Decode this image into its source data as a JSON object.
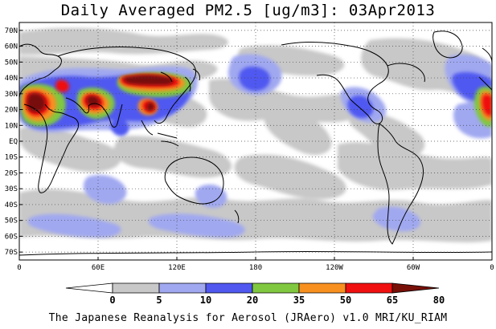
{
  "title": "Daily Averaged PM2.5 [ug/m3]: 03Apr2013",
  "credit": "The Japanese Reanalysis for Aerosol (JRAero) v1.0 MRI/KU_RIAM",
  "lat_ticks": [
    {
      "lat": 70,
      "label": "70N"
    },
    {
      "lat": 60,
      "label": "60N"
    },
    {
      "lat": 50,
      "label": "50N"
    },
    {
      "lat": 40,
      "label": "40N"
    },
    {
      "lat": 30,
      "label": "30N"
    },
    {
      "lat": 20,
      "label": "20N"
    },
    {
      "lat": 10,
      "label": "10N"
    },
    {
      "lat": 0,
      "label": "EQ"
    },
    {
      "lat": -10,
      "label": "10S"
    },
    {
      "lat": -20,
      "label": "20S"
    },
    {
      "lat": -30,
      "label": "30S"
    },
    {
      "lat": -40,
      "label": "40S"
    },
    {
      "lat": -50,
      "label": "50S"
    },
    {
      "lat": -60,
      "label": "60S"
    },
    {
      "lat": -70,
      "label": "70S"
    }
  ],
  "lon_ticks": [
    {
      "lon": 0,
      "label": "0"
    },
    {
      "lon": 60,
      "label": "60E"
    },
    {
      "lon": 120,
      "label": "120E"
    },
    {
      "lon": 180,
      "label": "180"
    },
    {
      "lon": 240,
      "label": "120W"
    },
    {
      "lon": 300,
      "label": "60W"
    },
    {
      "lon": 360,
      "label": "0"
    }
  ],
  "colorbar": {
    "colors": [
      "#ffffff",
      "#c8c8c8",
      "#a0a8f0",
      "#5058f0",
      "#80c840",
      "#f89020",
      "#f01010",
      "#781008"
    ],
    "labels": [
      "0",
      "5",
      "10",
      "20",
      "35",
      "50",
      "65",
      "80"
    ]
  }
}
